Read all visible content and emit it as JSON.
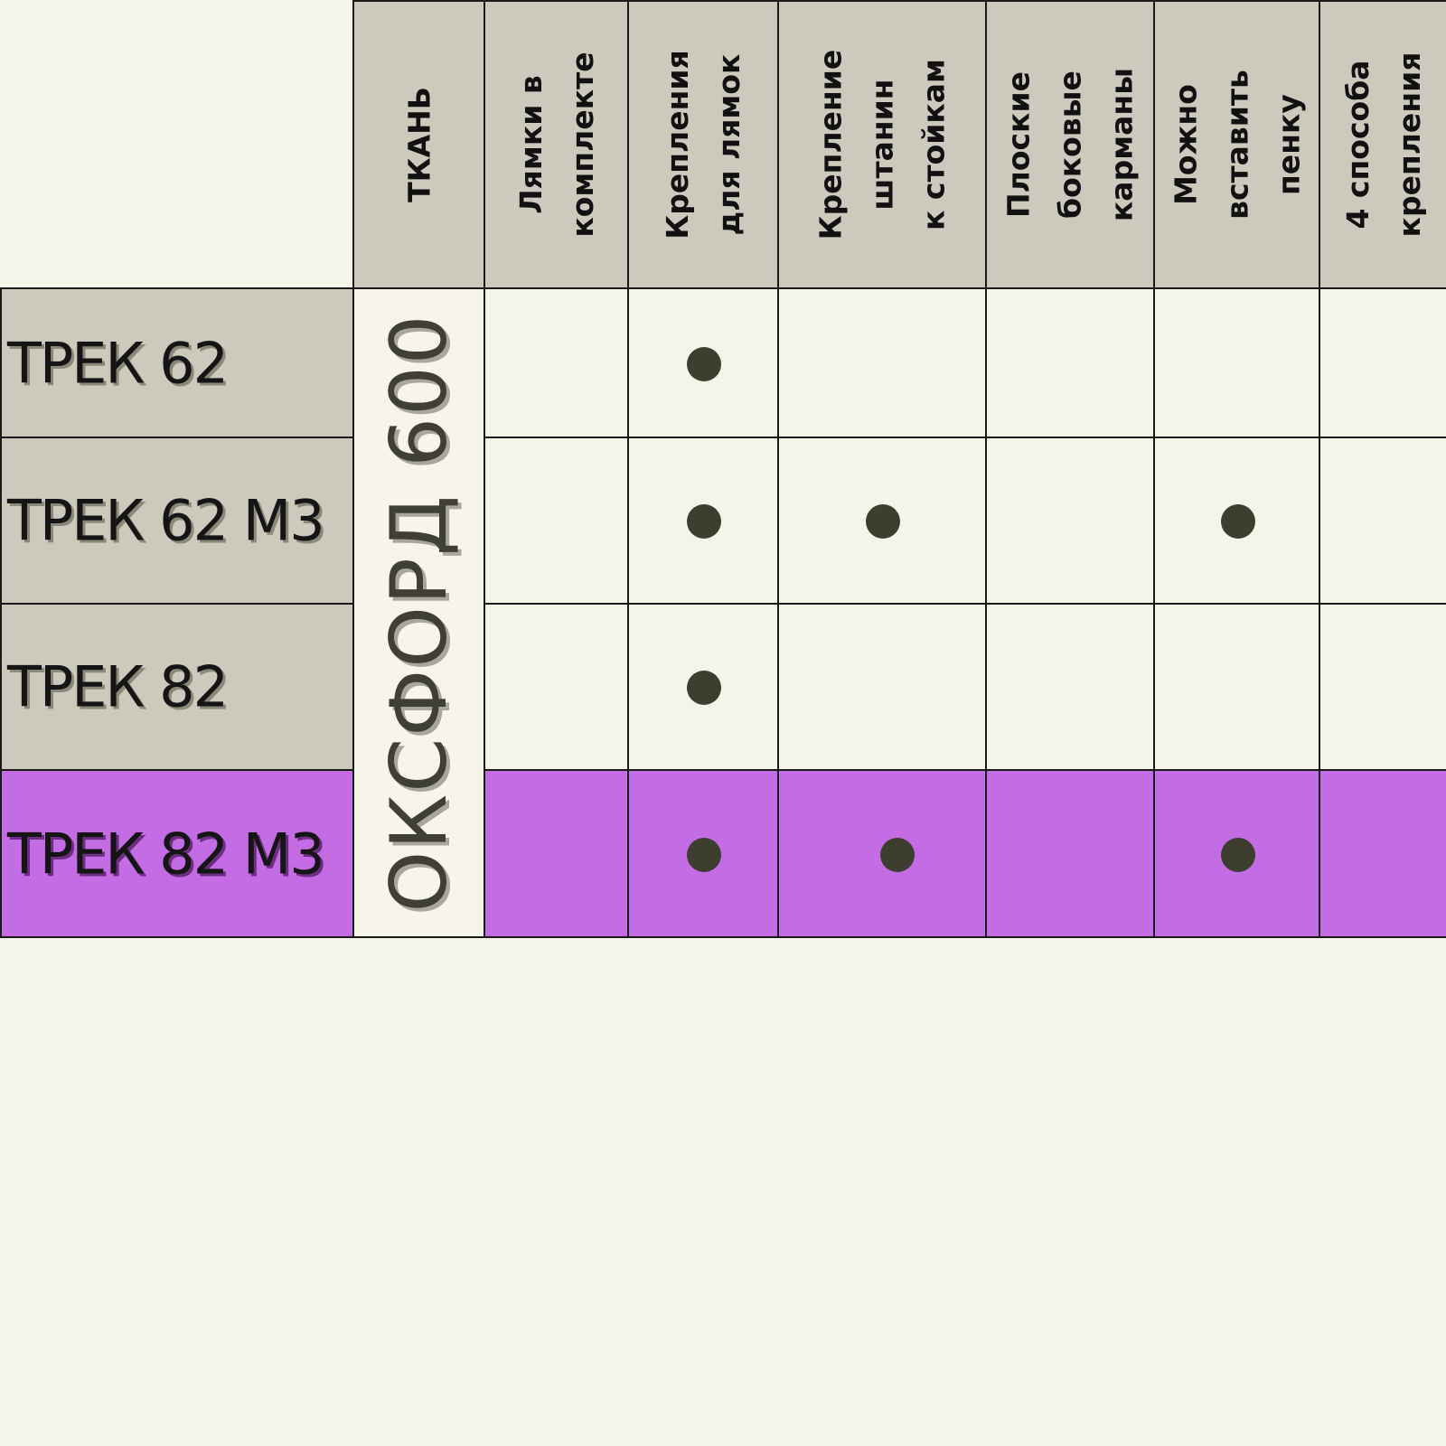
{
  "table": {
    "columns": [
      {
        "key": "fabric",
        "label": "ТКАНЬ"
      },
      {
        "key": "straps_included",
        "label": "Лямки в\nкомплекте"
      },
      {
        "key": "strap_mounts",
        "label": "Крепления\nдля лямок"
      },
      {
        "key": "leg_mounts",
        "label": "Крепление\nштанин\nк стойкам"
      },
      {
        "key": "flat_side_pockets",
        "label": "Плоские\nбоковые\nкарманы"
      },
      {
        "key": "foam_insert",
        "label": "Можно\nвставить\nпенку"
      },
      {
        "key": "four_mount_ways",
        "label": "4 способа\nкрепления"
      }
    ],
    "fabric_value": "ОКСФОРД 600",
    "rows": [
      {
        "name": "ТРЕК 62",
        "highlighted": false,
        "features": {
          "straps_included": false,
          "strap_mounts": true,
          "leg_mounts": false,
          "flat_side_pockets": false,
          "foam_insert": false,
          "four_mount_ways": false
        }
      },
      {
        "name": "ТРЕК 62 М3",
        "highlighted": false,
        "features": {
          "straps_included": false,
          "strap_mounts": true,
          "leg_mounts": true,
          "flat_side_pockets": false,
          "foam_insert": true,
          "four_mount_ways": false
        }
      },
      {
        "name": "ТРЕК 82",
        "highlighted": false,
        "features": {
          "straps_included": false,
          "strap_mounts": true,
          "leg_mounts": false,
          "flat_side_pockets": false,
          "foam_insert": false,
          "four_mount_ways": false
        }
      },
      {
        "name": "ТРЕК 82 М3",
        "highlighted": true,
        "features": {
          "straps_included": false,
          "strap_mounts": true,
          "leg_mounts": true,
          "flat_side_pockets": false,
          "foam_insert": true,
          "four_mount_ways": false
        }
      }
    ],
    "colors": {
      "header_bg": "#cdc9bc",
      "body_bg": "#f4f4e8",
      "highlight_bg": "#c46ce4",
      "dot": "#3d3d30",
      "border": "#1a1a1a"
    }
  }
}
